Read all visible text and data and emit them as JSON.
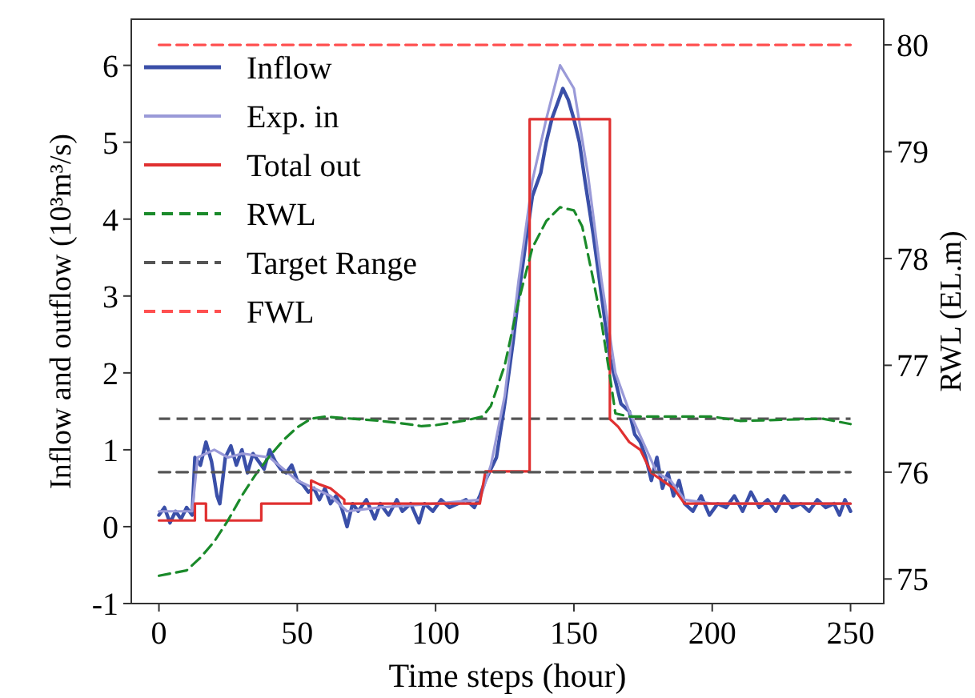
{
  "chart_data": {
    "type": "line",
    "xlabel": "Time steps (hour)",
    "ylabel": "Inflow and outflow (10³m³/s)",
    "y2label": "RWL (EL.m)",
    "xlim": [
      -10,
      262
    ],
    "xticks": [
      0,
      50,
      100,
      150,
      200,
      250
    ],
    "ylim": [
      -1,
      6.6
    ],
    "yticks": [
      -1,
      0,
      1,
      2,
      3,
      4,
      5,
      6
    ],
    "y2lim": [
      74.77,
      80.24
    ],
    "y2ticks": [
      75,
      76,
      77,
      78,
      79,
      80
    ],
    "legend": "top left",
    "grid": false,
    "ref_lines": [
      {
        "axis": "y2",
        "value": 76.5,
        "color": "#555555",
        "line_style": "dashed"
      }
    ],
    "series": [
      {
        "name": "Inflow",
        "color": "#3a4fa8",
        "line_style": "solid",
        "x": [
          0,
          2,
          4,
          6,
          8,
          10,
          12,
          13,
          15,
          17,
          19,
          21,
          22,
          24,
          26,
          28,
          30,
          32,
          34,
          36,
          38,
          40,
          42,
          44,
          46,
          48,
          50,
          52,
          54,
          56,
          58,
          60,
          62,
          64,
          66,
          68,
          70,
          72,
          75,
          78,
          80,
          83,
          86,
          88,
          91,
          94,
          96,
          99,
          102,
          105,
          108,
          111,
          114,
          116,
          118,
          120,
          122,
          125,
          128,
          130,
          133,
          135,
          138,
          140,
          142,
          144,
          146,
          148,
          150,
          152,
          154,
          157,
          160,
          163,
          165,
          167,
          170,
          172,
          174,
          176,
          178,
          180,
          182,
          184,
          186,
          188,
          190,
          193,
          196,
          199,
          202,
          205,
          208,
          211,
          214,
          217,
          220,
          223,
          226,
          229,
          232,
          235,
          238,
          241,
          244,
          246,
          248,
          250
        ],
        "values": [
          0.15,
          0.25,
          0.05,
          0.2,
          0.1,
          0.25,
          0.15,
          0.9,
          0.8,
          1.1,
          0.85,
          0.4,
          0.3,
          0.9,
          1.05,
          0.8,
          1.0,
          0.7,
          0.95,
          0.85,
          0.75,
          1.0,
          0.85,
          0.75,
          0.7,
          0.8,
          0.6,
          0.55,
          0.45,
          0.5,
          0.35,
          0.5,
          0.3,
          0.4,
          0.25,
          0.0,
          0.3,
          0.2,
          0.35,
          0.1,
          0.3,
          0.15,
          0.35,
          0.2,
          0.3,
          0.05,
          0.3,
          0.2,
          0.35,
          0.25,
          0.3,
          0.35,
          0.25,
          0.4,
          0.6,
          0.75,
          0.9,
          1.6,
          2.4,
          3.0,
          3.8,
          4.3,
          4.6,
          5.0,
          5.3,
          5.5,
          5.7,
          5.55,
          5.3,
          5.0,
          4.5,
          3.8,
          3.0,
          2.2,
          1.9,
          1.6,
          1.5,
          1.2,
          1.1,
          0.9,
          0.6,
          0.9,
          0.5,
          0.7,
          0.4,
          0.6,
          0.3,
          0.2,
          0.4,
          0.15,
          0.3,
          0.25,
          0.4,
          0.2,
          0.45,
          0.25,
          0.35,
          0.2,
          0.4,
          0.25,
          0.3,
          0.2,
          0.35,
          0.25,
          0.3,
          0.15,
          0.35,
          0.2
        ]
      },
      {
        "name": "Exp. in",
        "color": "#9a9ad8",
        "line_style": "solid",
        "x": [
          0,
          12,
          14,
          20,
          25,
          30,
          40,
          50,
          56,
          62,
          68,
          80,
          100,
          116,
          120,
          125,
          130,
          135,
          140,
          145,
          150,
          155,
          160,
          165,
          170,
          175,
          180,
          185,
          190,
          200,
          220,
          250
        ],
        "values": [
          0.2,
          0.2,
          0.9,
          1.0,
          0.9,
          0.95,
          0.9,
          0.6,
          0.5,
          0.4,
          0.2,
          0.25,
          0.3,
          0.35,
          0.8,
          1.7,
          3.2,
          4.5,
          5.3,
          6.0,
          5.7,
          4.6,
          3.2,
          2.0,
          1.5,
          1.1,
          0.7,
          0.6,
          0.35,
          0.3,
          0.3,
          0.3
        ]
      },
      {
        "name": "Total out",
        "color": "#e03030",
        "line_style": "solid",
        "x": [
          0,
          13,
          13,
          17,
          17,
          37,
          37,
          55,
          55,
          58,
          62,
          67,
          67,
          116,
          118,
          134,
          134,
          163,
          163,
          166,
          170,
          174,
          178,
          182,
          186,
          190,
          250
        ],
        "values": [
          0.08,
          0.08,
          0.3,
          0.3,
          0.08,
          0.08,
          0.3,
          0.3,
          0.6,
          0.55,
          0.5,
          0.35,
          0.3,
          0.3,
          0.72,
          0.72,
          5.3,
          5.3,
          1.4,
          1.3,
          1.1,
          1.0,
          0.7,
          0.6,
          0.5,
          0.3,
          0.3
        ]
      },
      {
        "name": "RWL",
        "color": "#1a8a2a",
        "line_style": "dashed",
        "axis": "y2",
        "x": [
          0,
          10,
          15,
          20,
          25,
          30,
          35,
          40,
          45,
          50,
          55,
          60,
          70,
          80,
          90,
          95,
          100,
          110,
          117,
          120,
          125,
          130,
          135,
          140,
          145,
          150,
          153,
          157,
          160,
          163,
          165,
          170,
          200,
          210,
          240,
          250
        ],
        "values": [
          75.03,
          75.08,
          75.2,
          75.35,
          75.55,
          75.78,
          75.98,
          76.15,
          76.3,
          76.42,
          76.5,
          76.52,
          76.5,
          76.48,
          76.45,
          76.43,
          76.44,
          76.48,
          76.52,
          76.62,
          77.0,
          77.6,
          78.1,
          78.35,
          78.48,
          78.45,
          78.3,
          77.8,
          77.4,
          76.9,
          76.55,
          76.52,
          76.52,
          76.48,
          76.5,
          76.45
        ]
      },
      {
        "name": "Target Range",
        "color": "#555555",
        "line_style": "dashed",
        "axis": "y2",
        "x": [
          0,
          250
        ],
        "values": [
          76,
          76
        ]
      },
      {
        "name": "FWL",
        "color": "#ff5050",
        "line_style": "dashed",
        "axis": "y2",
        "x": [
          0,
          250
        ],
        "values": [
          80,
          80
        ]
      }
    ]
  }
}
